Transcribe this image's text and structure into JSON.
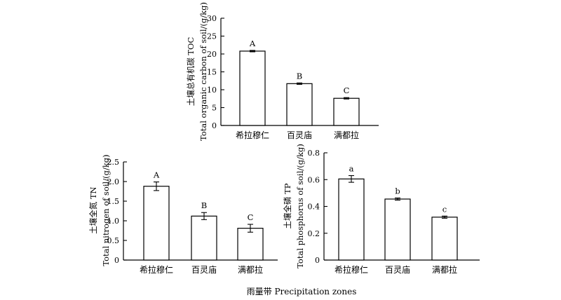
{
  "x_label": "雨量带 Precipitation zones",
  "chart_data": [
    {
      "type": "bar",
      "categories": [
        "希拉穆仁",
        "百灵庙",
        "满都拉"
      ],
      "values": [
        20.8,
        11.7,
        7.6
      ],
      "errors": [
        0.2,
        0.2,
        0.2
      ],
      "significance": [
        "A",
        "B",
        "C"
      ],
      "ylabel_line1": "土壤总有机碳 TOC",
      "ylabel_line2": "Total organic carbon of soil/(g/kg)",
      "ylim": [
        0,
        30
      ],
      "yticks": [
        "0",
        "5",
        "10",
        "15",
        "20",
        "25",
        "30"
      ]
    },
    {
      "type": "bar",
      "categories": [
        "希拉穆仁",
        "百灵庙",
        "满都拉"
      ],
      "values": [
        1.88,
        1.12,
        0.81
      ],
      "errors": [
        0.11,
        0.09,
        0.1
      ],
      "significance": [
        "A",
        "B",
        "C"
      ],
      "ylabel_line1": "土壤全氮 TN",
      "ylabel_line2": "Total nitrogen of soil/(g/kg)",
      "ylim": [
        0,
        2.5
      ],
      "yticks": [
        "0",
        "0.5",
        "1.0",
        "1.5",
        "2.0",
        "2.5"
      ]
    },
    {
      "type": "bar",
      "categories": [
        "希拉穆仁",
        "百灵庙",
        "满都拉"
      ],
      "values": [
        0.605,
        0.455,
        0.32
      ],
      "errors": [
        0.025,
        0.008,
        0.008
      ],
      "significance": [
        "a",
        "b",
        "c"
      ],
      "ylabel_line1": "土壤全磷 TP",
      "ylabel_line2": "Total phosphorus of soil/(g/kg)",
      "ylim": [
        0,
        0.8
      ],
      "yticks": [
        "0",
        "0.2",
        "0.4",
        "0.6",
        "0.8"
      ]
    }
  ]
}
